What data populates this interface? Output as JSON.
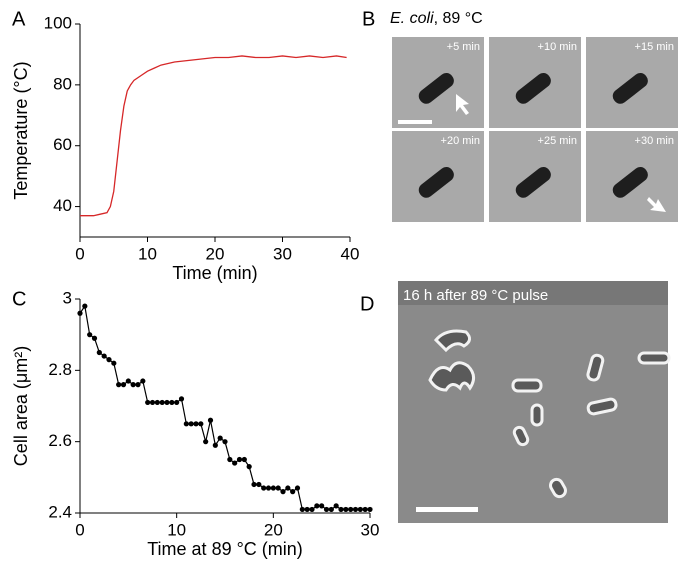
{
  "chart_data": [
    {
      "type": "line",
      "label": "A",
      "xlabel": "Time (min)",
      "ylabel": "Temperature (°C)",
      "x": [
        0,
        1,
        2,
        3,
        4,
        4.5,
        5,
        5.5,
        6,
        6.5,
        7,
        7.5,
        8,
        9,
        10,
        11,
        12,
        14,
        16,
        18,
        20,
        22,
        24,
        26,
        28,
        30,
        32,
        34,
        36,
        38,
        39.5
      ],
      "values": [
        37,
        37,
        37,
        37.5,
        38,
        40,
        45,
        55,
        65,
        73,
        78,
        80,
        81.5,
        83,
        84.5,
        85.5,
        86.5,
        87.5,
        88,
        88.5,
        89,
        89,
        89.5,
        89,
        89,
        89.5,
        89,
        89.5,
        89,
        89.5,
        89
      ],
      "color": "#d62728",
      "markers": false,
      "xlim": [
        0,
        40
      ],
      "ylim": [
        30,
        100
      ],
      "xticks": [
        0,
        10,
        20,
        30,
        40
      ],
      "yticks": [
        40,
        60,
        80,
        100
      ]
    },
    {
      "type": "line",
      "label": "C",
      "xlabel": "Time at 89 °C (min)",
      "ylabel": "Cell area (μm²)",
      "x": [
        0,
        0.5,
        1,
        1.5,
        2,
        2.5,
        3,
        3.5,
        4,
        4.5,
        5,
        5.5,
        6,
        6.5,
        7,
        7.5,
        8,
        8.5,
        9,
        9.5,
        10,
        10.5,
        11,
        11.5,
        12,
        12.5,
        13,
        13.5,
        14,
        14.5,
        15,
        15.5,
        16,
        16.5,
        17,
        17.5,
        18,
        18.5,
        19,
        19.5,
        20,
        20.5,
        21,
        21.5,
        22,
        22.5,
        23,
        23.5,
        24,
        24.5,
        25,
        25.5,
        26,
        26.5,
        27,
        27.5,
        28,
        28.5,
        29,
        29.5,
        30
      ],
      "values": [
        2.96,
        2.98,
        2.9,
        2.89,
        2.85,
        2.84,
        2.83,
        2.82,
        2.76,
        2.76,
        2.77,
        2.76,
        2.76,
        2.77,
        2.71,
        2.71,
        2.71,
        2.71,
        2.71,
        2.71,
        2.71,
        2.72,
        2.65,
        2.65,
        2.65,
        2.65,
        2.6,
        2.66,
        2.59,
        2.61,
        2.6,
        2.55,
        2.54,
        2.55,
        2.55,
        2.53,
        2.48,
        2.48,
        2.47,
        2.47,
        2.47,
        2.47,
        2.46,
        2.47,
        2.46,
        2.47,
        2.41,
        2.41,
        2.41,
        2.42,
        2.42,
        2.41,
        2.41,
        2.42,
        2.41,
        2.41,
        2.41,
        2.41,
        2.41,
        2.41,
        2.41
      ],
      "color": "#000000",
      "markers": true,
      "xlim": [
        0,
        30
      ],
      "ylim": [
        2.4,
        3
      ],
      "xticks": [
        0,
        10,
        20,
        30
      ],
      "yticks": [
        2.4,
        2.6,
        2.8,
        3
      ]
    }
  ],
  "panel_b": {
    "label": "B",
    "title_italic": "E. coli",
    "title_rest": ", 89 °C",
    "frames": [
      "+5 min",
      "+10 min",
      "+15 min",
      "+20 min",
      "+25 min",
      "+30 min"
    ]
  },
  "panel_d": {
    "label": "D",
    "caption": "16 h after 89 °C pulse"
  }
}
